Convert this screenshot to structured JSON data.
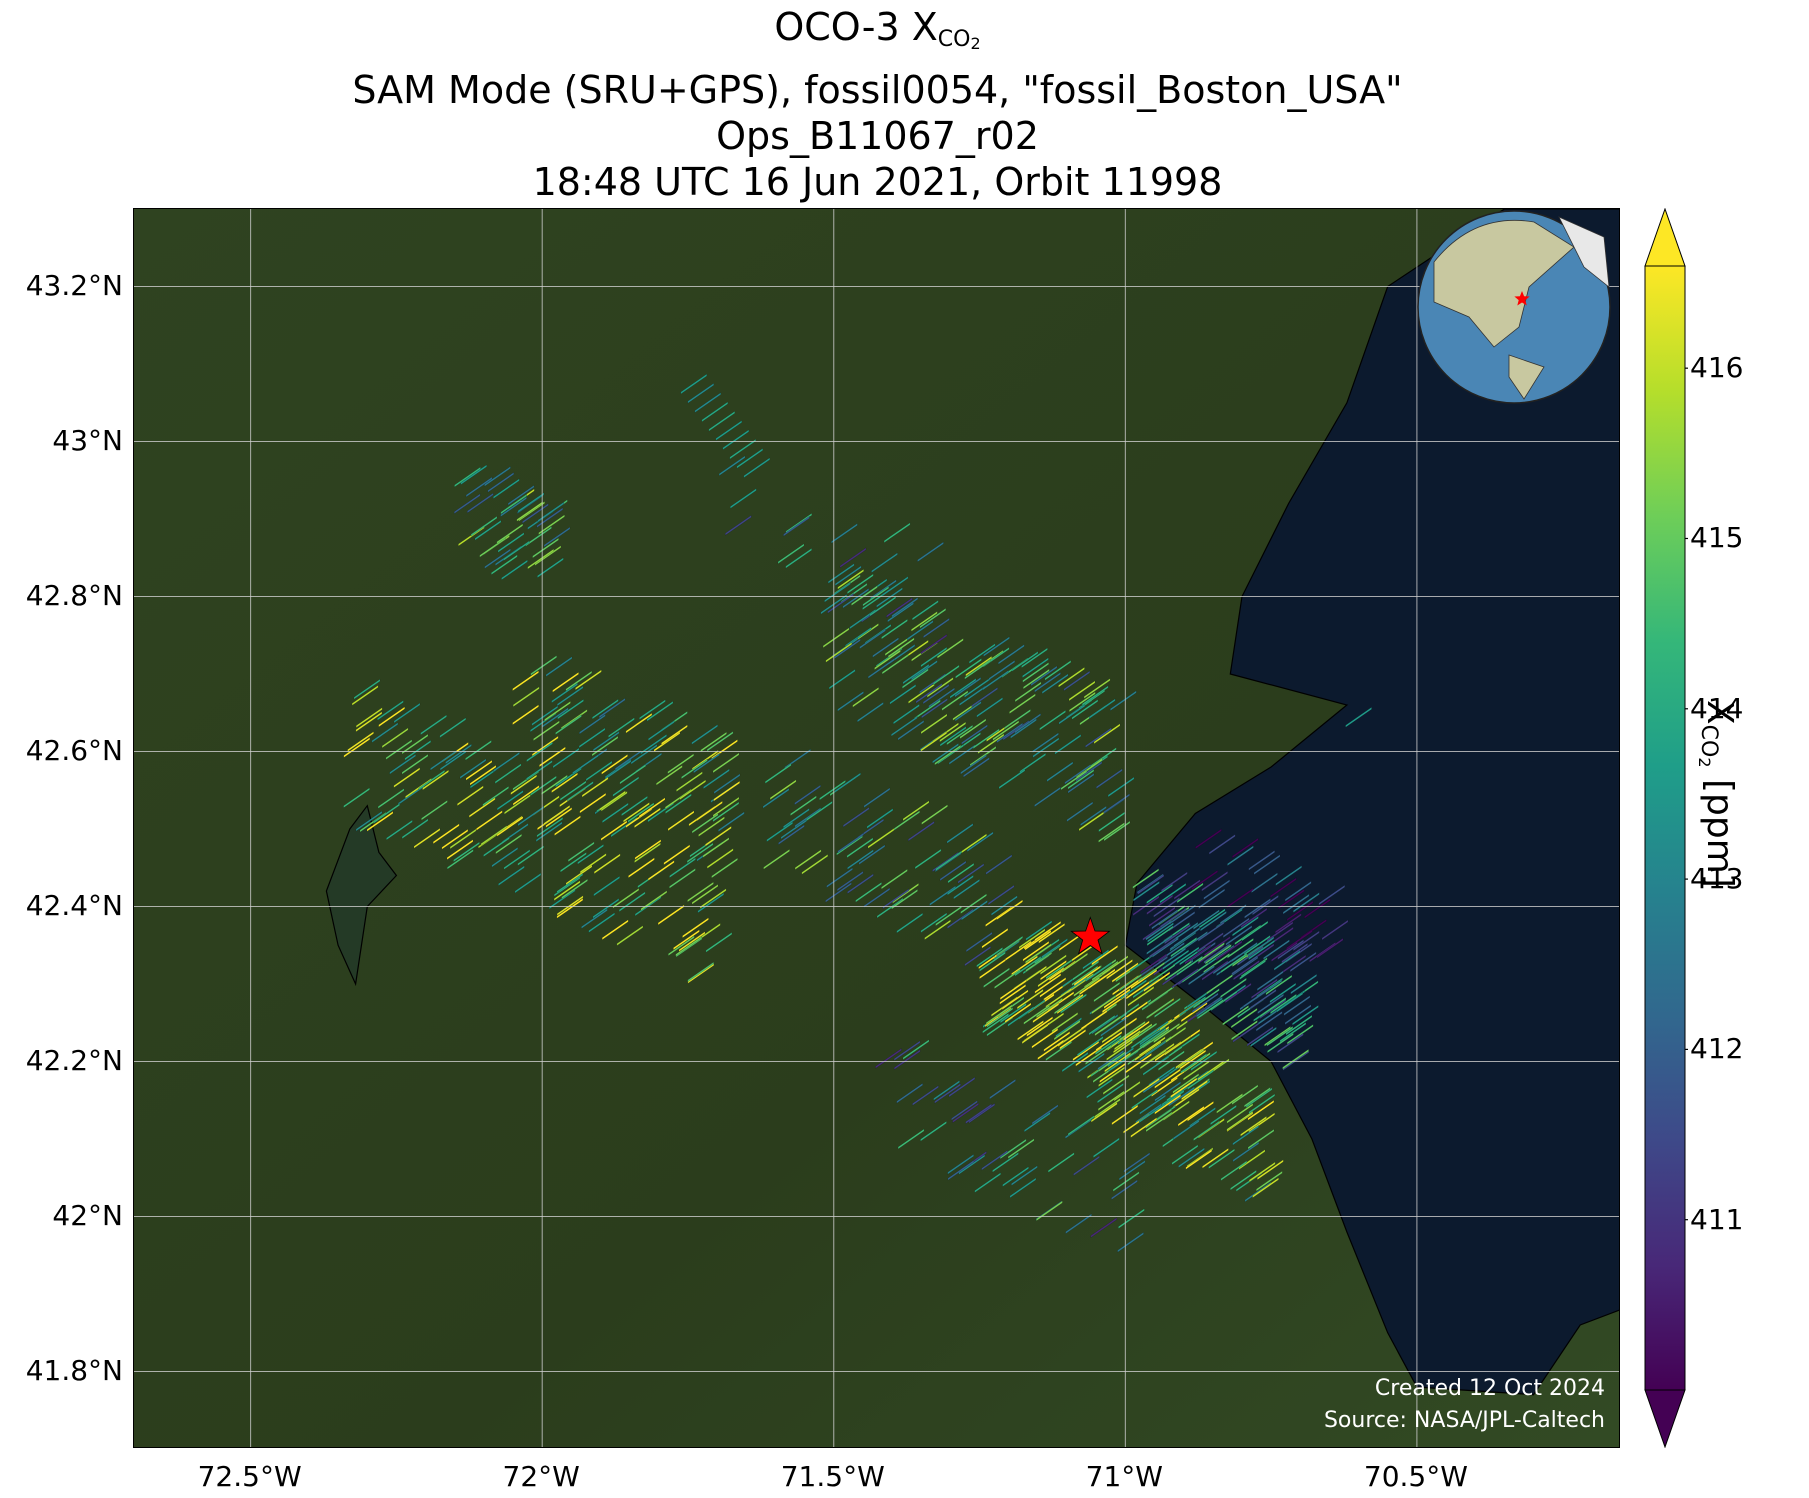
{
  "title": {
    "line1_prefix": "OCO-3 X",
    "line1_sub": "CO",
    "line1_sub_num": "2",
    "line2": "SAM Mode (SRU+GPS), fossil0054, \"fossil_Boston_USA\"",
    "line3": "Ops_B11067_r02",
    "line4": "18:48 UTC 16 Jun 2021, Orbit 11998"
  },
  "map": {
    "extent": {
      "lon_min": -72.7,
      "lon_max": -70.15,
      "lat_min": 41.7,
      "lat_max": 43.3
    },
    "lon_ticks": [
      {
        "value": -72.5,
        "label": "72.5°W"
      },
      {
        "value": -72.0,
        "label": "72°W"
      },
      {
        "value": -71.5,
        "label": "71.5°W"
      },
      {
        "value": -71.0,
        "label": "71°W"
      },
      {
        "value": -70.5,
        "label": "70.5°W"
      }
    ],
    "lat_ticks": [
      {
        "value": 43.2,
        "label": "43.2°N"
      },
      {
        "value": 43.0,
        "label": "43°N"
      },
      {
        "value": 42.8,
        "label": "42.8°N"
      },
      {
        "value": 42.6,
        "label": "42.6°N"
      },
      {
        "value": 42.4,
        "label": "42.4°N"
      },
      {
        "value": 42.2,
        "label": "42.2°N"
      },
      {
        "value": 42.0,
        "label": "42°N"
      },
      {
        "value": 41.8,
        "label": "41.8°N"
      }
    ],
    "target": {
      "name": "fossil_Boston_USA",
      "lon": -71.06,
      "lat": 42.36,
      "marker_color": "#ff0000"
    },
    "colors": {
      "land": "#2b3d1c",
      "ocean": "#0c1a2e",
      "grid": "#cfcfcf",
      "coast": "#000000"
    },
    "credit_line1": "Created 12 Oct 2024",
    "credit_line2": "Source: NASA/JPL-Caltech",
    "inset_globe": {
      "land_color": "#c8c8a0",
      "ocean_color": "#4a86b5",
      "marker_color": "#ff0000"
    }
  },
  "soundings": {
    "units": "ppm",
    "clusters": [
      {
        "lon": -72.0,
        "lat": 42.5,
        "n": 140,
        "spread_lon": 0.32,
        "spread_lat": 0.09,
        "mean": 415.2
      },
      {
        "lon": -71.85,
        "lat": 42.6,
        "n": 90,
        "spread_lon": 0.18,
        "spread_lat": 0.08,
        "mean": 414.6
      },
      {
        "lon": -72.05,
        "lat": 42.9,
        "n": 40,
        "spread_lon": 0.08,
        "spread_lat": 0.06,
        "mean": 414.0
      },
      {
        "lon": -71.25,
        "lat": 42.67,
        "n": 160,
        "spread_lon": 0.25,
        "spread_lat": 0.09,
        "mean": 413.8
      },
      {
        "lon": -71.4,
        "lat": 42.47,
        "n": 70,
        "spread_lon": 0.2,
        "spread_lat": 0.08,
        "mean": 413.6
      },
      {
        "lon": -71.05,
        "lat": 42.27,
        "n": 200,
        "spread_lon": 0.18,
        "spread_lat": 0.08,
        "mean": 415.6
      },
      {
        "lon": -70.9,
        "lat": 42.15,
        "n": 80,
        "spread_lon": 0.15,
        "spread_lat": 0.07,
        "mean": 414.8
      },
      {
        "lon": -70.83,
        "lat": 42.33,
        "n": 160,
        "spread_lon": 0.14,
        "spread_lat": 0.08,
        "mean": 412.8
      },
      {
        "lon": -70.75,
        "lat": 42.42,
        "n": 30,
        "spread_lon": 0.12,
        "spread_lat": 0.05,
        "mean": 410.8
      },
      {
        "lon": -71.2,
        "lat": 42.1,
        "n": 45,
        "spread_lon": 0.22,
        "spread_lat": 0.07,
        "mean": 413.0
      },
      {
        "lon": -71.5,
        "lat": 42.85,
        "n": 20,
        "spread_lon": 0.18,
        "spread_lat": 0.08,
        "mean": 412.5
      }
    ],
    "swaths": [
      {
        "lon": -71.74,
        "lat": 43.08,
        "n": 10,
        "value": 413.6
      },
      {
        "lon": -70.6,
        "lat": 42.65,
        "n": 1,
        "value": 413.5
      }
    ]
  },
  "colorbar": {
    "vmin": 410.0,
    "vmax": 416.6,
    "ticks": [
      {
        "value": 411,
        "label": "411"
      },
      {
        "value": 412,
        "label": "412"
      },
      {
        "value": 413,
        "label": "413"
      },
      {
        "value": 414,
        "label": "414"
      },
      {
        "value": 415,
        "label": "415"
      },
      {
        "value": 416,
        "label": "416"
      }
    ],
    "label_prefix": "X",
    "label_sub": "CO",
    "label_sub_num": "2",
    "label_suffix": " [ppm]",
    "colormap": [
      "#440154",
      "#482878",
      "#3e4989",
      "#31688e",
      "#26828e",
      "#1f9e89",
      "#35b779",
      "#6ece58",
      "#b5de2b",
      "#fde725"
    ]
  }
}
